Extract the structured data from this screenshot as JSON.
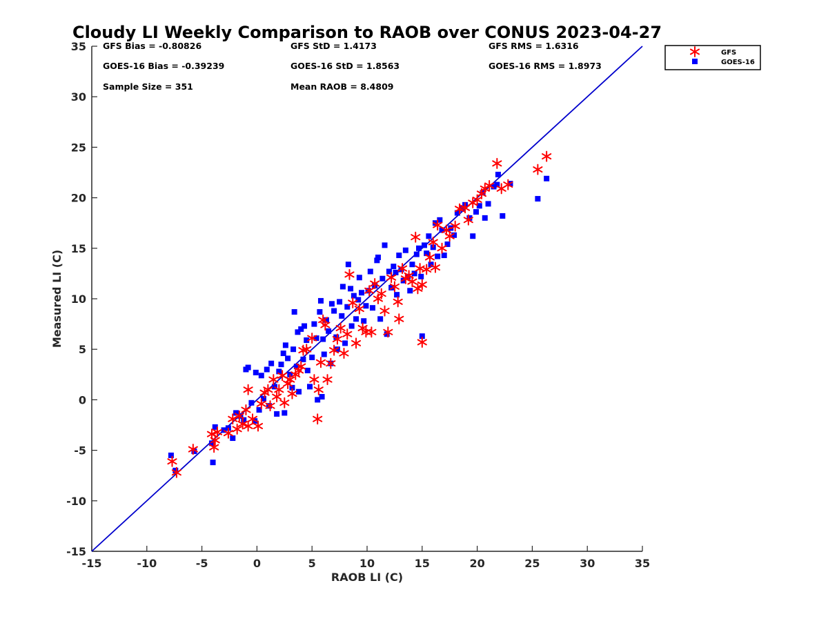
{
  "colors": {
    "gfs": "#ff0000",
    "goes": "#0000ff",
    "line": "#0000cc",
    "axis": "#262626"
  },
  "stats": [
    {
      "text": "GFS Bias = -0.80826"
    },
    {
      "text": "GFS StD = 1.4173"
    },
    {
      "text": "GFS RMS = 1.6316"
    },
    {
      "text": "GOES-16 Bias = -0.39239"
    },
    {
      "text": "GOES-16 StD = 1.8563"
    },
    {
      "text": "GOES-16 RMS = 1.8973"
    },
    {
      "text": "Sample Size = 351"
    },
    {
      "text": "Mean RAOB = 8.4809"
    }
  ],
  "chart_data": {
    "type": "scatter",
    "title": "Cloudy LI Weekly Comparison to RAOB over CONUS 2023-04-27",
    "xlabel": "RAOB LI (C)",
    "ylabel": "Measured LI (C)",
    "xlim": [
      -15,
      35
    ],
    "ylim": [
      -15,
      35
    ],
    "xticks": [
      "-15",
      "-10",
      "-5",
      "0",
      "5",
      "10",
      "15",
      "20",
      "25",
      "30",
      "35"
    ],
    "yticks": [
      "-15",
      "-10",
      "-5",
      "0",
      "5",
      "10",
      "15",
      "20",
      "25",
      "30",
      "35"
    ],
    "grid": false,
    "legend_position": "outside top-right",
    "reference_line": {
      "from": [
        -15,
        -15
      ],
      "to": [
        35,
        35
      ]
    },
    "series": [
      {
        "name": "GFS",
        "marker": "asterisk",
        "points": [
          [
            -7.7,
            -6.1
          ],
          [
            -7.3,
            -7.2
          ],
          [
            -5.8,
            -4.9
          ],
          [
            -4.1,
            -3.4
          ],
          [
            -3.9,
            -4.7
          ],
          [
            -3.6,
            -3.2
          ],
          [
            -3.8,
            -4.0
          ],
          [
            -2.6,
            -3.3
          ],
          [
            -2.2,
            -1.9
          ],
          [
            -1.8,
            -2.9
          ],
          [
            -1.6,
            -1.6
          ],
          [
            -1.3,
            -2.4
          ],
          [
            -1.0,
            -1.0
          ],
          [
            -0.8,
            -2.6
          ],
          [
            -0.8,
            1.0
          ],
          [
            -0.4,
            -1.9
          ],
          [
            0.1,
            -2.6
          ],
          [
            0.4,
            -0.4
          ],
          [
            0.7,
            0.7
          ],
          [
            1.0,
            1.0
          ],
          [
            1.2,
            -0.6
          ],
          [
            1.5,
            2.0
          ],
          [
            1.8,
            0.3
          ],
          [
            2.0,
            1.0
          ],
          [
            2.3,
            2.4
          ],
          [
            2.5,
            -0.3
          ],
          [
            2.8,
            1.6
          ],
          [
            3.0,
            2.0
          ],
          [
            3.2,
            0.6
          ],
          [
            3.5,
            2.5
          ],
          [
            3.8,
            2.9
          ],
          [
            4.0,
            3.3
          ],
          [
            4.2,
            4.9
          ],
          [
            4.5,
            5.0
          ],
          [
            5.0,
            6.1
          ],
          [
            5.2,
            2.0
          ],
          [
            5.5,
            -1.9
          ],
          [
            5.6,
            1.0
          ],
          [
            5.8,
            3.7
          ],
          [
            6.0,
            7.9
          ],
          [
            6.2,
            7.4
          ],
          [
            6.4,
            2.0
          ],
          [
            6.7,
            3.6
          ],
          [
            7.0,
            4.9
          ],
          [
            7.3,
            6.0
          ],
          [
            7.6,
            7.1
          ],
          [
            7.9,
            4.6
          ],
          [
            8.2,
            6.5
          ],
          [
            8.4,
            12.4
          ],
          [
            8.7,
            9.6
          ],
          [
            9.0,
            5.6
          ],
          [
            9.3,
            9.0
          ],
          [
            9.6,
            7.1
          ],
          [
            9.9,
            6.7
          ],
          [
            10.2,
            10.8
          ],
          [
            10.4,
            6.7
          ],
          [
            10.7,
            11.5
          ],
          [
            11.0,
            10.0
          ],
          [
            11.3,
            10.5
          ],
          [
            11.6,
            8.8
          ],
          [
            11.9,
            6.7
          ],
          [
            12.2,
            12.1
          ],
          [
            12.5,
            11.2
          ],
          [
            12.8,
            9.7
          ],
          [
            12.9,
            8.0
          ],
          [
            13.2,
            13.0
          ],
          [
            13.5,
            12.0
          ],
          [
            13.8,
            12.3
          ],
          [
            14.1,
            11.7
          ],
          [
            14.4,
            16.1
          ],
          [
            14.6,
            11.0
          ],
          [
            14.8,
            13.0
          ],
          [
            15.0,
            11.4
          ],
          [
            15.0,
            5.7
          ],
          [
            15.4,
            12.9
          ],
          [
            15.7,
            14.1
          ],
          [
            16.0,
            15.6
          ],
          [
            16.2,
            13.1
          ],
          [
            16.4,
            17.3
          ],
          [
            16.8,
            15.0
          ],
          [
            17.2,
            16.8
          ],
          [
            17.5,
            16.2
          ],
          [
            18.0,
            17.2
          ],
          [
            18.4,
            18.9
          ],
          [
            18.9,
            19.0
          ],
          [
            19.2,
            17.8
          ],
          [
            19.6,
            19.5
          ],
          [
            20.0,
            19.8
          ],
          [
            20.4,
            20.4
          ],
          [
            20.7,
            20.9
          ],
          [
            21.1,
            21.2
          ],
          [
            21.8,
            23.4
          ],
          [
            22.2,
            20.9
          ],
          [
            22.8,
            21.3
          ],
          [
            25.5,
            22.8
          ],
          [
            26.3,
            24.1
          ]
        ]
      },
      {
        "name": "GOES-16",
        "marker": "square",
        "points": [
          [
            -7.8,
            -5.5
          ],
          [
            -7.4,
            -7.0
          ],
          [
            -5.7,
            -5.1
          ],
          [
            -4.1,
            -4.3
          ],
          [
            -4.0,
            -6.2
          ],
          [
            -3.8,
            -2.7
          ],
          [
            -3.0,
            -3.0
          ],
          [
            -2.6,
            -2.8
          ],
          [
            -2.2,
            -3.8
          ],
          [
            -1.9,
            -1.3
          ],
          [
            -1.5,
            -1.6
          ],
          [
            -1.2,
            -2.0
          ],
          [
            -1.0,
            3.0
          ],
          [
            -0.8,
            3.2
          ],
          [
            -0.5,
            -0.3
          ],
          [
            -0.2,
            -2.1
          ],
          [
            -0.1,
            2.7
          ],
          [
            0.2,
            -1.0
          ],
          [
            0.4,
            2.4
          ],
          [
            0.6,
            0.1
          ],
          [
            0.9,
            3.0
          ],
          [
            1.1,
            -0.6
          ],
          [
            1.3,
            3.6
          ],
          [
            1.6,
            1.3
          ],
          [
            1.8,
            -1.4
          ],
          [
            2.0,
            2.8
          ],
          [
            2.2,
            3.5
          ],
          [
            2.4,
            4.6
          ],
          [
            2.5,
            -1.3
          ],
          [
            2.6,
            5.4
          ],
          [
            2.8,
            4.1
          ],
          [
            3.0,
            2.5
          ],
          [
            3.2,
            1.2
          ],
          [
            3.3,
            5.0
          ],
          [
            3.4,
            8.7
          ],
          [
            3.6,
            3.3
          ],
          [
            3.7,
            6.7
          ],
          [
            3.8,
            0.8
          ],
          [
            4.0,
            7.0
          ],
          [
            4.2,
            4.0
          ],
          [
            4.3,
            7.3
          ],
          [
            4.5,
            5.9
          ],
          [
            4.6,
            2.9
          ],
          [
            4.8,
            1.3
          ],
          [
            5.0,
            4.2
          ],
          [
            5.2,
            7.5
          ],
          [
            5.4,
            6.1
          ],
          [
            5.5,
            0.0
          ],
          [
            5.7,
            8.7
          ],
          [
            5.8,
            9.8
          ],
          [
            5.9,
            0.3
          ],
          [
            6.0,
            6.0
          ],
          [
            6.1,
            4.5
          ],
          [
            6.3,
            7.9
          ],
          [
            6.5,
            6.8
          ],
          [
            6.7,
            3.6
          ],
          [
            6.8,
            9.5
          ],
          [
            7.0,
            8.8
          ],
          [
            7.2,
            6.2
          ],
          [
            7.3,
            5.0
          ],
          [
            7.5,
            9.7
          ],
          [
            7.7,
            8.3
          ],
          [
            7.8,
            11.2
          ],
          [
            8.0,
            5.6
          ],
          [
            8.2,
            9.2
          ],
          [
            8.3,
            13.4
          ],
          [
            8.5,
            11.0
          ],
          [
            8.6,
            7.3
          ],
          [
            8.8,
            10.3
          ],
          [
            9.0,
            8.0
          ],
          [
            9.2,
            9.9
          ],
          [
            9.3,
            12.1
          ],
          [
            9.5,
            10.6
          ],
          [
            9.7,
            7.8
          ],
          [
            9.9,
            9.3
          ],
          [
            10.1,
            10.8
          ],
          [
            10.3,
            12.7
          ],
          [
            10.5,
            9.1
          ],
          [
            10.7,
            11.3
          ],
          [
            10.9,
            13.8
          ],
          [
            11.0,
            14.1
          ],
          [
            11.2,
            8.0
          ],
          [
            11.4,
            12.0
          ],
          [
            11.6,
            15.3
          ],
          [
            11.8,
            6.5
          ],
          [
            12.0,
            12.7
          ],
          [
            12.2,
            11.1
          ],
          [
            12.4,
            13.2
          ],
          [
            12.6,
            12.6
          ],
          [
            12.7,
            10.4
          ],
          [
            12.9,
            14.3
          ],
          [
            13.1,
            12.9
          ],
          [
            13.3,
            11.8
          ],
          [
            13.5,
            14.8
          ],
          [
            13.7,
            12.2
          ],
          [
            13.9,
            10.8
          ],
          [
            14.1,
            13.4
          ],
          [
            14.3,
            12.5
          ],
          [
            14.5,
            14.4
          ],
          [
            14.7,
            15.0
          ],
          [
            14.9,
            12.2
          ],
          [
            15.0,
            6.3
          ],
          [
            15.2,
            15.3
          ],
          [
            15.4,
            14.5
          ],
          [
            15.6,
            16.2
          ],
          [
            15.8,
            13.4
          ],
          [
            16.0,
            15.1
          ],
          [
            16.2,
            17.5
          ],
          [
            16.4,
            14.2
          ],
          [
            16.6,
            17.8
          ],
          [
            16.8,
            16.8
          ],
          [
            17.0,
            14.3
          ],
          [
            17.3,
            15.4
          ],
          [
            17.6,
            17.0
          ],
          [
            17.9,
            16.3
          ],
          [
            18.2,
            18.5
          ],
          [
            18.6,
            18.9
          ],
          [
            18.9,
            19.3
          ],
          [
            19.3,
            18.0
          ],
          [
            19.6,
            16.2
          ],
          [
            19.9,
            18.6
          ],
          [
            20.2,
            19.2
          ],
          [
            20.5,
            20.5
          ],
          [
            20.7,
            18.0
          ],
          [
            21.0,
            19.4
          ],
          [
            21.5,
            21.1
          ],
          [
            21.8,
            21.3
          ],
          [
            21.9,
            22.3
          ],
          [
            22.3,
            18.2
          ],
          [
            23.0,
            21.4
          ],
          [
            25.5,
            19.9
          ],
          [
            26.3,
            21.9
          ]
        ]
      }
    ]
  }
}
